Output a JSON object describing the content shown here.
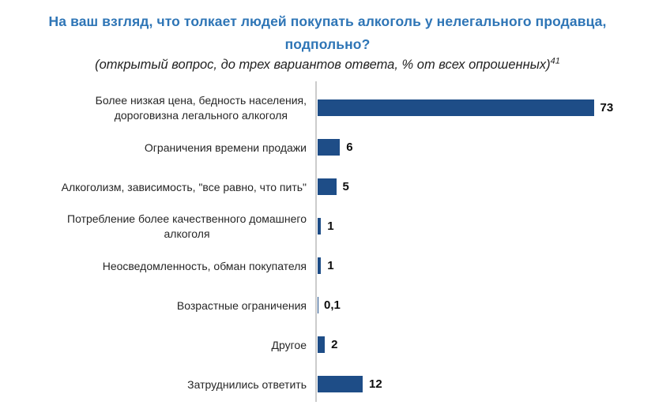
{
  "header": {
    "title": "На ваш взгляд, что толкает людей покупать алкоголь у нелегального продавца, подпольно?",
    "subtitle": "(открытый вопрос, до трех вариантов ответа, % от всех опрошенных)",
    "footnote_marker": "41"
  },
  "chart_data": {
    "type": "bar",
    "orientation": "horizontal",
    "title": "На ваш взгляд, что толкает людей покупать алкоголь у нелегального продавца, подпольно?",
    "subtitle": "(открытый вопрос, до трех вариантов ответа, % от всех опрошенных)",
    "unit": "% от всех опрошенных",
    "categories": [
      "Более низкая цена, бедность населения,\nдороговизна легального алкоголя",
      "Ограничения времени продажи",
      "Алкоголизм, зависимость, \"все равно, что пить\"",
      "Потребление более качественного домашнего\nалкоголя",
      "Неосведомленность, обман покупателя",
      "Возрастные ограничения",
      "Другое",
      "Затруднились ответить"
    ],
    "values": [
      73,
      6,
      5,
      1,
      1,
      0.1,
      2,
      12
    ],
    "value_labels": [
      "73",
      "6",
      "5",
      "1",
      "1",
      "0,1",
      "2",
      "12"
    ],
    "xlim": [
      0,
      76
    ],
    "grid": false,
    "legend": false,
    "bar_color": "#1E4D87",
    "axis_color": "#CCCCCC",
    "title_color": "#2E75B6"
  }
}
